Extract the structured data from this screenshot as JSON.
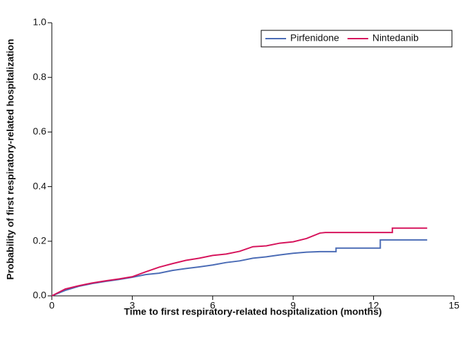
{
  "chart_data": {
    "type": "line",
    "x_label": "Time to first respiratory-related hospitalization (months)",
    "y_label": "Probability of first respiratory-related hospitalization",
    "xlim": [
      0,
      15
    ],
    "xticks": [
      0,
      3,
      6,
      9,
      12,
      15
    ],
    "ylim": [
      0,
      1.0
    ],
    "yticks": [
      {
        "value": 0,
        "label": "0.0"
      },
      {
        "value": 0.2,
        "label": "0.2"
      },
      {
        "value": 0.4,
        "label": "0.4"
      },
      {
        "value": 0.6,
        "label": "0.6"
      },
      {
        "value": 0.8,
        "label": "0.8"
      },
      {
        "value": 1.0,
        "label": "1.0"
      }
    ],
    "legend": "upper right",
    "series": [
      {
        "name": "Pirfenidone",
        "color": "#4a6bb5",
        "x": [
          0,
          0.5,
          1,
          1.5,
          2,
          2.5,
          3,
          3.5,
          4,
          4.5,
          5,
          5.5,
          6,
          6.5,
          7,
          7.5,
          8,
          8.5,
          9,
          9.5,
          10,
          10.6,
          10.6,
          12.25,
          12.25,
          14
        ],
        "values": [
          0,
          0.02,
          0.035,
          0.045,
          0.053,
          0.06,
          0.068,
          0.078,
          0.083,
          0.093,
          0.1,
          0.106,
          0.113,
          0.122,
          0.128,
          0.138,
          0.143,
          0.15,
          0.156,
          0.16,
          0.162,
          0.162,
          0.175,
          0.175,
          0.205,
          0.205
        ]
      },
      {
        "name": "Nintedanib",
        "color": "#d6135b",
        "x": [
          0,
          0.5,
          1,
          1.5,
          2,
          2.5,
          3,
          3.5,
          4,
          4.5,
          5,
          5.5,
          6,
          6.5,
          7,
          7.5,
          8,
          8.5,
          9,
          9.5,
          10,
          10.2,
          12.7,
          12.7,
          14
        ],
        "values": [
          0,
          0.025,
          0.037,
          0.047,
          0.055,
          0.062,
          0.07,
          0.088,
          0.105,
          0.118,
          0.13,
          0.138,
          0.148,
          0.153,
          0.163,
          0.18,
          0.183,
          0.193,
          0.198,
          0.21,
          0.23,
          0.232,
          0.232,
          0.248,
          0.248
        ]
      }
    ]
  }
}
